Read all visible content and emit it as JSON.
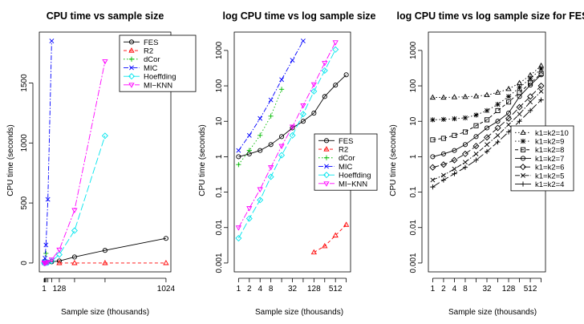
{
  "chart_data": [
    {
      "type": "line",
      "title": "CPU time vs sample size",
      "xlabel": "Sample size (thousands)",
      "ylabel": "CPU time (seconds)",
      "xscale": "linear",
      "yscale": "linear",
      "xlim": [
        1,
        1024
      ],
      "ylim": [
        0,
        1850
      ],
      "xticks": [
        {
          "v": 1,
          "label": "1"
        },
        {
          "v": 128,
          "label": "128"
        },
        {
          "v": 1024,
          "label": "1024"
        }
      ],
      "xminor_ticks": [
        2,
        4,
        8,
        16,
        32,
        64,
        256,
        512
      ],
      "yticks": [
        {
          "v": 0,
          "label": "0"
        },
        {
          "v": 500,
          "label": "500"
        },
        {
          "v": 1000,
          "label": "1000"
        },
        {
          "v": 1500,
          "label": "1500"
        }
      ],
      "legend": "top-right",
      "series": [
        {
          "name": "FES",
          "color": "#000000",
          "marker": "circle",
          "dash": "",
          "x": [
            1,
            2,
            4,
            8,
            16,
            32,
            64,
            128,
            256,
            512,
            1024
          ],
          "y": [
            1.0,
            1.2,
            1.5,
            2.2,
            3.7,
            6.5,
            10,
            17,
            50,
            105,
            205
          ]
        },
        {
          "name": "R2",
          "color": "#ff0000",
          "marker": "triangle-up",
          "dash": "4,3",
          "x": [
            128,
            256,
            512,
            1024
          ],
          "y": [
            0.002,
            0.003,
            0.006,
            0.012
          ]
        },
        {
          "name": "dCor",
          "color": "#00bb00",
          "marker": "plus",
          "dash": "1.5,2.5",
          "x": [
            1,
            2,
            4,
            8,
            16
          ],
          "y": [
            0.6,
            1.5,
            4,
            14,
            80
          ]
        },
        {
          "name": "MIC",
          "color": "#0000ff",
          "marker": "cross",
          "dash": "6,2,1.5,2",
          "x": [
            1,
            2,
            4,
            8,
            16,
            32,
            64
          ],
          "y": [
            1.5,
            4,
            12,
            40,
            150,
            530,
            1850
          ]
        },
        {
          "name": "Hoeffding",
          "color": "#00e5ee",
          "marker": "diamond",
          "dash": "9,3",
          "x": [
            1,
            2,
            4,
            8,
            16,
            32,
            64,
            128,
            256,
            512
          ],
          "y": [
            0.005,
            0.018,
            0.06,
            0.27,
            1.1,
            4,
            16,
            70,
            270,
            1060
          ]
        },
        {
          "name": "MI−KNN",
          "color": "#ff00ff",
          "marker": "triangle-down",
          "dash": "8,2,2,2",
          "x": [
            1,
            2,
            4,
            8,
            16,
            32,
            64,
            128,
            256,
            512
          ],
          "y": [
            0.01,
            0.035,
            0.12,
            0.5,
            2,
            7,
            28,
            110,
            440,
            1680
          ]
        }
      ]
    },
    {
      "type": "line",
      "title": "log CPU time vs log sample size",
      "xlabel": "Sample size (thousands)",
      "ylabel": "CPU time (seconds)",
      "xscale": "log2",
      "yscale": "log10",
      "xlim": [
        1,
        1024
      ],
      "ylim": [
        0.001,
        1850
      ],
      "xticks": [
        {
          "v": 1,
          "label": "1"
        },
        {
          "v": 2,
          "label": "2"
        },
        {
          "v": 4,
          "label": "4"
        },
        {
          "v": 8,
          "label": "8"
        },
        {
          "v": 32,
          "label": "32"
        },
        {
          "v": 128,
          "label": "128"
        },
        {
          "v": 512,
          "label": "512"
        }
      ],
      "xminor_ticks": [
        16,
        64,
        256,
        1024
      ],
      "yticks": [
        {
          "v": 0.001,
          "label": "0.001"
        },
        {
          "v": 0.01,
          "label": "0.01"
        },
        {
          "v": 0.1,
          "label": "0.1"
        },
        {
          "v": 1,
          "label": "1"
        },
        {
          "v": 10,
          "label": "10"
        },
        {
          "v": 100,
          "label": "100"
        },
        {
          "v": 1000,
          "label": "1000"
        }
      ],
      "legend": "right",
      "series": [
        {
          "name": "FES",
          "color": "#000000",
          "marker": "circle",
          "dash": "",
          "x": [
            1,
            2,
            4,
            8,
            16,
            32,
            64,
            128,
            256,
            512,
            1024
          ],
          "y": [
            1.0,
            1.2,
            1.5,
            2.2,
            3.7,
            6.5,
            10,
            17,
            50,
            105,
            205
          ]
        },
        {
          "name": "R2",
          "color": "#ff0000",
          "marker": "triangle-up",
          "dash": "4,3",
          "x": [
            128,
            256,
            512,
            1024
          ],
          "y": [
            0.002,
            0.003,
            0.006,
            0.012
          ]
        },
        {
          "name": "dCor",
          "color": "#00bb00",
          "marker": "plus",
          "dash": "1.5,2.5",
          "x": [
            1,
            2,
            4,
            8,
            16
          ],
          "y": [
            0.6,
            1.5,
            4,
            14,
            80
          ]
        },
        {
          "name": "MIC",
          "color": "#0000ff",
          "marker": "cross",
          "dash": "6,2,1.5,2",
          "x": [
            1,
            2,
            4,
            8,
            16,
            32,
            64
          ],
          "y": [
            1.5,
            4,
            12,
            40,
            150,
            530,
            1850
          ]
        },
        {
          "name": "Hoeffding",
          "color": "#00e5ee",
          "marker": "diamond",
          "dash": "9,3",
          "x": [
            1,
            2,
            4,
            8,
            16,
            32,
            64,
            128,
            256,
            512
          ],
          "y": [
            0.005,
            0.018,
            0.06,
            0.27,
            1.1,
            4,
            16,
            70,
            270,
            1060
          ]
        },
        {
          "name": "MI−KNN",
          "color": "#ff00ff",
          "marker": "triangle-down",
          "dash": "8,2,2,2",
          "x": [
            1,
            2,
            4,
            8,
            16,
            32,
            64,
            128,
            256,
            512
          ],
          "y": [
            0.01,
            0.035,
            0.12,
            0.5,
            2,
            7,
            28,
            110,
            440,
            1680
          ]
        }
      ]
    },
    {
      "type": "line",
      "title": "log CPU time vs log sample size for FES",
      "xlabel": "Sample size (thousands)",
      "ylabel": "CPU time (seconds)",
      "xscale": "log2",
      "yscale": "log10",
      "xlim": [
        1,
        1024
      ],
      "ylim": [
        0.001,
        1850
      ],
      "xticks": [
        {
          "v": 1,
          "label": "1"
        },
        {
          "v": 2,
          "label": "2"
        },
        {
          "v": 4,
          "label": "4"
        },
        {
          "v": 8,
          "label": "8"
        },
        {
          "v": 32,
          "label": "32"
        },
        {
          "v": 128,
          "label": "128"
        },
        {
          "v": 512,
          "label": "512"
        }
      ],
      "xminor_ticks": [
        16,
        64,
        256,
        1024
      ],
      "yticks": [
        {
          "v": 0.001,
          "label": "0.001"
        },
        {
          "v": 0.01,
          "label": "0.01"
        },
        {
          "v": 0.1,
          "label": "0.1"
        },
        {
          "v": 1,
          "label": "1"
        },
        {
          "v": 10,
          "label": "10"
        },
        {
          "v": 100,
          "label": "100"
        },
        {
          "v": 1000,
          "label": "1000"
        }
      ],
      "legend": "right",
      "series": [
        {
          "name": "k1=k2=10",
          "color": "#000000",
          "marker": "triangle-up",
          "dash": "1.5,2.5",
          "x": [
            1,
            2,
            4,
            8,
            16,
            32,
            64,
            128,
            256,
            512,
            1024
          ],
          "y": [
            47,
            47,
            48,
            49,
            51,
            55,
            65,
            82,
            120,
            200,
            370
          ]
        },
        {
          "name": "k1=k2=9",
          "color": "#000000",
          "marker": "asterisk",
          "dash": "1.5,2.5",
          "x": [
            1,
            2,
            4,
            8,
            16,
            32,
            64,
            128,
            256,
            512,
            1024
          ],
          "y": [
            11,
            11.3,
            11.8,
            12.5,
            15,
            20,
            30,
            50,
            90,
            160,
            300
          ]
        },
        {
          "name": "k1=k2=8",
          "color": "#000000",
          "marker": "square",
          "dash": "4,3",
          "x": [
            1,
            2,
            4,
            8,
            16,
            32,
            64,
            128,
            256,
            512,
            1024
          ],
          "y": [
            3,
            3.3,
            4,
            5,
            7.5,
            11,
            20,
            35,
            65,
            120,
            220
          ]
        },
        {
          "name": "k1=k2=7",
          "color": "#000000",
          "marker": "circle",
          "dash": "",
          "x": [
            1,
            2,
            4,
            8,
            16,
            32,
            64,
            128,
            256,
            512,
            1024
          ],
          "y": [
            1.0,
            1.2,
            1.5,
            2.2,
            3.7,
            6.5,
            10,
            17,
            50,
            105,
            205
          ]
        },
        {
          "name": "k1=k2=6",
          "color": "#000000",
          "marker": "diamond",
          "dash": "8,3",
          "x": [
            1,
            2,
            4,
            8,
            16,
            32,
            64,
            128,
            256,
            512,
            1024
          ],
          "y": [
            0.5,
            0.6,
            0.8,
            1.2,
            2,
            3.5,
            6.5,
            12,
            25,
            50,
            100
          ]
        },
        {
          "name": "k1=k2=5",
          "color": "#000000",
          "marker": "cross",
          "dash": "6,2,1.5,2",
          "x": [
            1,
            2,
            4,
            8,
            16,
            32,
            64,
            128,
            256,
            512,
            1024
          ],
          "y": [
            0.22,
            0.3,
            0.45,
            0.7,
            1.2,
            2.2,
            4,
            8,
            16,
            35,
            70
          ]
        },
        {
          "name": "k1=k2=4",
          "color": "#000000",
          "marker": "plus",
          "dash": "10,3",
          "x": [
            1,
            2,
            4,
            8,
            16,
            32,
            64,
            128,
            256,
            512,
            1024
          ],
          "y": [
            0.14,
            0.22,
            0.33,
            0.5,
            0.8,
            1.4,
            2.6,
            5,
            10,
            20,
            40
          ]
        }
      ]
    }
  ]
}
